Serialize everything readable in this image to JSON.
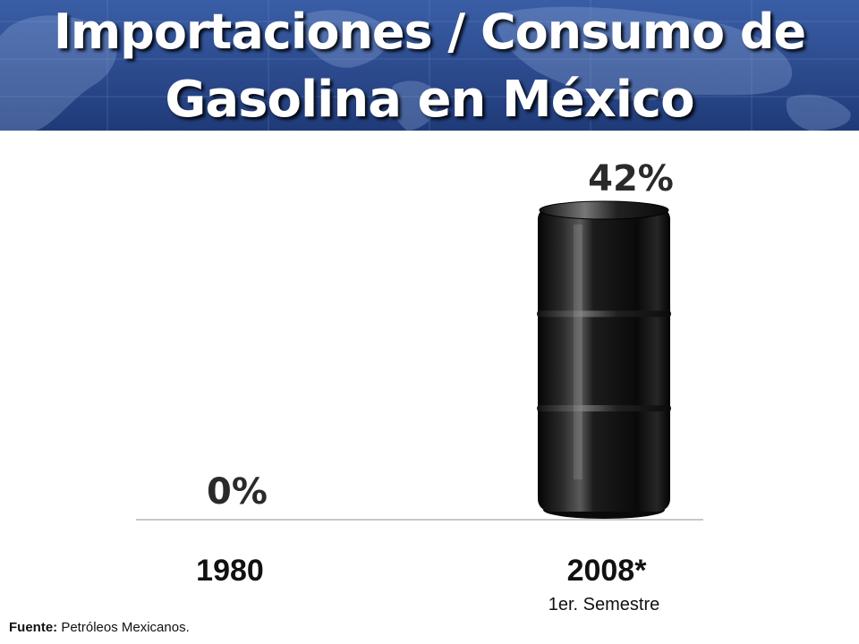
{
  "header": {
    "title_line_1": "Importaciones / Consumo de",
    "title_line_2": "Gasolina en México",
    "background_color": "#2c4a8c",
    "decoration": "world-map"
  },
  "chart_data": {
    "type": "bar",
    "bar_style": "oil-barrel",
    "categories": [
      "1980",
      "2008*"
    ],
    "category_sublabels": [
      "",
      "1er. Semestre"
    ],
    "values": [
      0,
      42
    ],
    "value_labels": [
      "0%",
      "42%"
    ],
    "ylim": [
      0,
      42
    ],
    "grid": false,
    "legend": "none",
    "title": "",
    "xlabel": "",
    "ylabel": ""
  },
  "footer": {
    "source_key": "Fuente:",
    "source_value": " Petróleos Mexicanos."
  }
}
